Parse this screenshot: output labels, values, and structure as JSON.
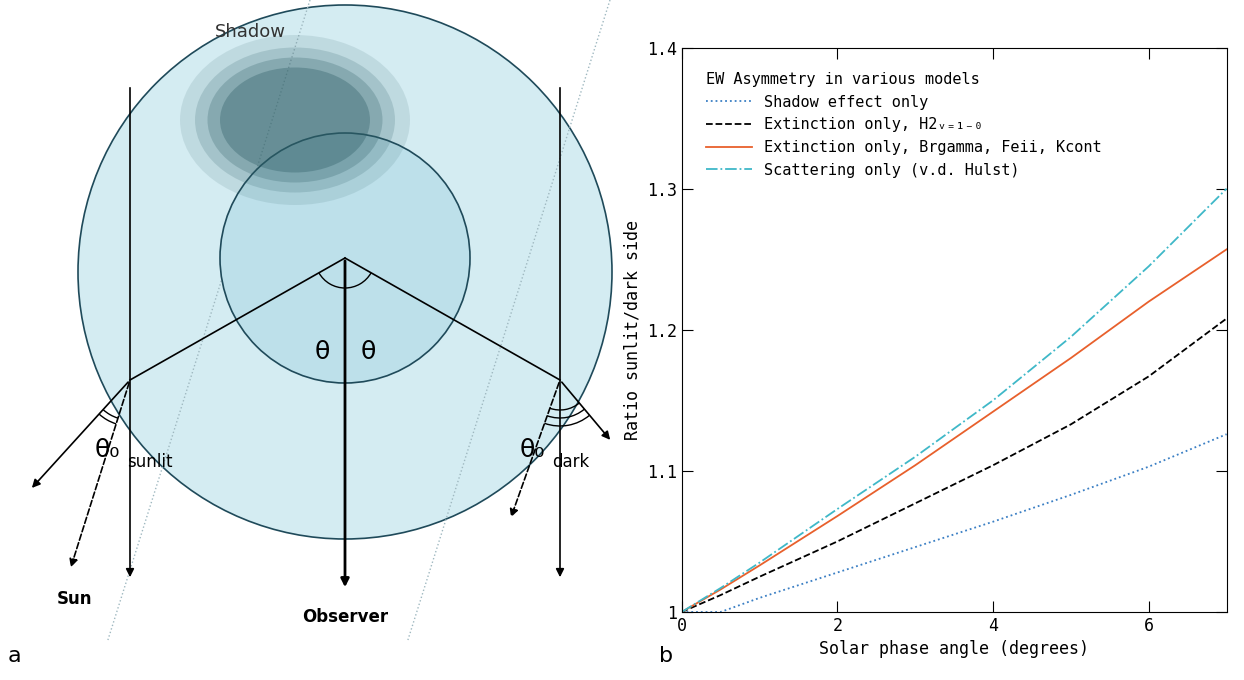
{
  "diagram": {
    "panel_label": "a",
    "shadow_label": "Shadow",
    "center_angles": [
      "θ",
      "θ"
    ],
    "sunlit_angle": {
      "symbol": "θ₀",
      "subscript": "sunlit"
    },
    "dark_angle": {
      "symbol": "θ₀",
      "subscript": "dark"
    },
    "sun_label": "Sun",
    "observer_label": "Observer"
  },
  "chart_data": {
    "type": "line",
    "panel_label": "b",
    "x_label": "Solar phase angle (degrees)",
    "y_label": "Ratio sunlit/dark side",
    "legend_title": "EW Asymmetry in various models",
    "legend": "upper left",
    "x": [
      0,
      0.5,
      1,
      2,
      3,
      4,
      5,
      6,
      7
    ],
    "series": [
      {
        "name": "Shadow effect only",
        "color": "#3a7fc4",
        "line_style": "dotted",
        "values": [
          1.0,
          1.0,
          1.01,
          1.028,
          1.046,
          1.064,
          1.083,
          1.103,
          1.126
        ]
      },
      {
        "name": "Extinction only, H2ᵥ₌₁₋₀",
        "color": "#000000",
        "line_style": "dashed",
        "values": [
          1.0,
          1.012,
          1.025,
          1.05,
          1.077,
          1.104,
          1.133,
          1.167,
          1.208
        ]
      },
      {
        "name": "Extinction only, Brgamma, Feii, Kcont",
        "color": "#e8602c",
        "line_style": "solid",
        "values": [
          1.0,
          1.016,
          1.033,
          1.068,
          1.104,
          1.142,
          1.18,
          1.22,
          1.257
        ]
      },
      {
        "name": "Scattering only (v.d. Hulst)",
        "color": "#3fb8c8",
        "line_style": "dashdot",
        "values": [
          1.0,
          1.017,
          1.035,
          1.073,
          1.11,
          1.15,
          1.195,
          1.245,
          1.3
        ]
      }
    ],
    "xlim": [
      0,
      7
    ],
    "xticks": [
      0,
      2,
      4,
      6
    ],
    "ylim": [
      1,
      1.4
    ],
    "yticks": [
      1,
      1.1,
      1.2,
      1.3,
      1.4
    ]
  }
}
